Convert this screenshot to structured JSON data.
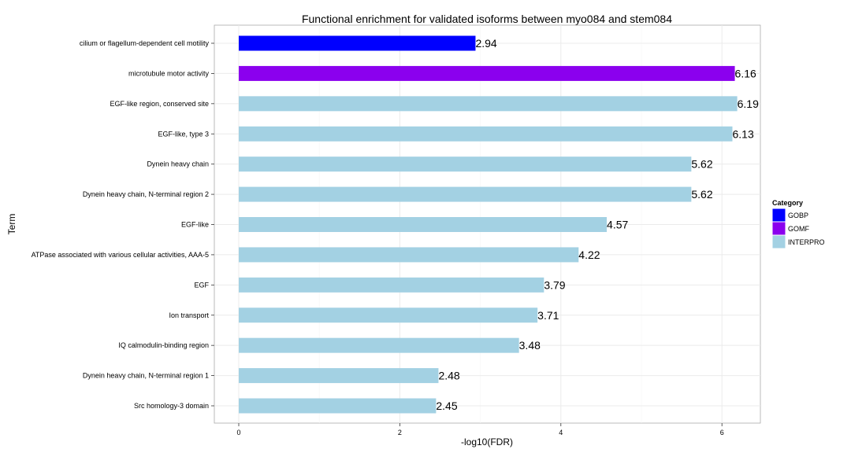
{
  "chart_data": {
    "type": "bar",
    "orientation": "horizontal",
    "title": "Functional enrichment for validated isoforms between myo084 and stem084",
    "xlabel": "-log10(FDR)",
    "ylabel": "Term",
    "xlim": [
      0,
      6.5
    ],
    "x_ticks": [
      0,
      2,
      4,
      6
    ],
    "grid": true,
    "legend": {
      "title": "Category",
      "placement": "right",
      "entries": [
        {
          "name": "GOBP",
          "color": "#0000ff"
        },
        {
          "name": "GOMF",
          "color": "#8b00ee"
        },
        {
          "name": "INTERPRO",
          "color": "#a3d1e3"
        }
      ]
    },
    "bars": [
      {
        "term": "cilium or flagellum-dependent cell motility",
        "value": 2.94,
        "label": "2.94",
        "category": "GOBP"
      },
      {
        "term": "microtubule motor activity",
        "value": 6.16,
        "label": "6.16",
        "category": "GOMF"
      },
      {
        "term": "EGF-like region, conserved site",
        "value": 6.19,
        "label": "6.19",
        "category": "INTERPRO"
      },
      {
        "term": "EGF-like, type 3",
        "value": 6.13,
        "label": "6.13",
        "category": "INTERPRO"
      },
      {
        "term": "Dynein heavy chain",
        "value": 5.62,
        "label": "5.62",
        "category": "INTERPRO"
      },
      {
        "term": "Dynein heavy chain, N-terminal region 2",
        "value": 5.62,
        "label": "5.62",
        "category": "INTERPRO"
      },
      {
        "term": "EGF-like",
        "value": 4.57,
        "label": "4.57",
        "category": "INTERPRO"
      },
      {
        "term": "ATPase associated with various cellular activities, AAA-5",
        "value": 4.22,
        "label": "4.22",
        "category": "INTERPRO"
      },
      {
        "term": "EGF",
        "value": 3.79,
        "label": "3.79",
        "category": "INTERPRO"
      },
      {
        "term": "Ion transport",
        "value": 3.71,
        "label": "3.71",
        "category": "INTERPRO"
      },
      {
        "term": "IQ calmodulin-binding region",
        "value": 3.48,
        "label": "3.48",
        "category": "INTERPRO"
      },
      {
        "term": "Dynein heavy chain, N-terminal region 1",
        "value": 2.48,
        "label": "2.48",
        "category": "INTERPRO"
      },
      {
        "term": "Src homology-3 domain",
        "value": 2.45,
        "label": "2.45",
        "category": "INTERPRO"
      }
    ]
  }
}
